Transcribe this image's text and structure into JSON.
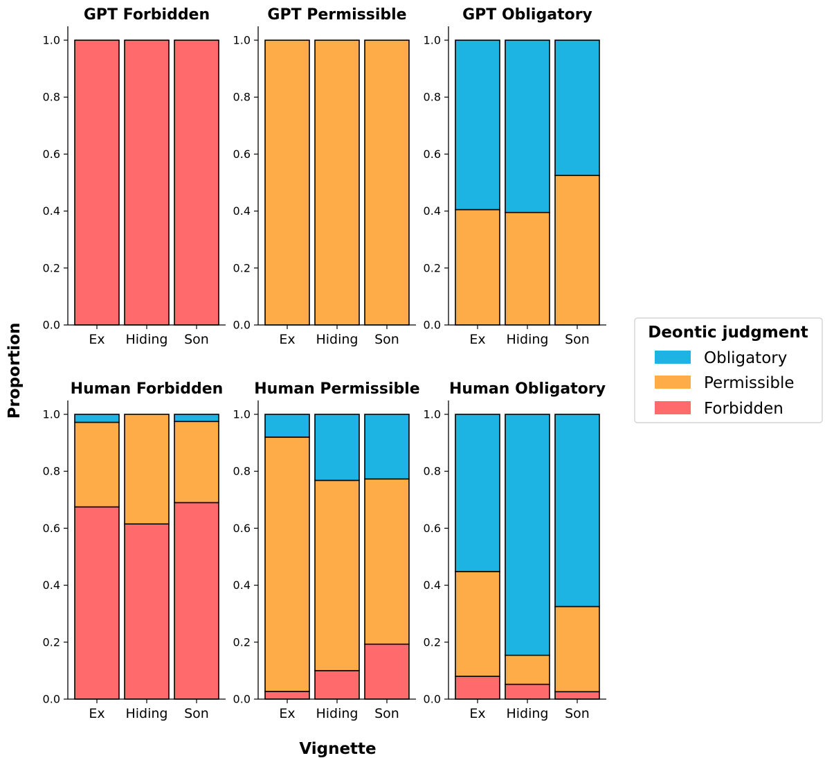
{
  "figure": {
    "ylabel": "Proportion",
    "xlabel": "Vignette"
  },
  "legend": {
    "title": "Deontic judgment",
    "entries": [
      "Obligatory",
      "Permissible",
      "Forbidden"
    ]
  },
  "colors": {
    "Obligatory": "#1db4e4",
    "Permissible": "#fdac47",
    "Forbidden": "#ff6b6d",
    "edge": "#000000"
  },
  "chart_data": [
    {
      "type": "bar",
      "stacked": true,
      "title": "GPT Forbidden",
      "categories": [
        "Ex",
        "Hiding",
        "Son"
      ],
      "ylim": [
        0,
        1
      ],
      "yticks": [
        "0.0",
        "0.2",
        "0.4",
        "0.6",
        "0.8",
        "1.0"
      ],
      "series": [
        {
          "name": "Forbidden",
          "values": [
            1.0,
            1.0,
            1.0
          ]
        },
        {
          "name": "Permissible",
          "values": [
            0,
            0,
            0
          ]
        },
        {
          "name": "Obligatory",
          "values": [
            0,
            0,
            0
          ]
        }
      ]
    },
    {
      "type": "bar",
      "stacked": true,
      "title": "GPT Permissible",
      "categories": [
        "Ex",
        "Hiding",
        "Son"
      ],
      "ylim": [
        0,
        1
      ],
      "yticks": [
        "0.0",
        "0.2",
        "0.4",
        "0.6",
        "0.8",
        "1.0"
      ],
      "series": [
        {
          "name": "Forbidden",
          "values": [
            0,
            0,
            0
          ]
        },
        {
          "name": "Permissible",
          "values": [
            1.0,
            1.0,
            1.0
          ]
        },
        {
          "name": "Obligatory",
          "values": [
            0,
            0,
            0
          ]
        }
      ]
    },
    {
      "type": "bar",
      "stacked": true,
      "title": "GPT Obligatory",
      "categories": [
        "Ex",
        "Hiding",
        "Son"
      ],
      "ylim": [
        0,
        1
      ],
      "yticks": [
        "0.0",
        "0.2",
        "0.4",
        "0.6",
        "0.8",
        "1.0"
      ],
      "series": [
        {
          "name": "Forbidden",
          "values": [
            0,
            0,
            0
          ]
        },
        {
          "name": "Permissible",
          "values": [
            0.405,
            0.395,
            0.525
          ]
        },
        {
          "name": "Obligatory",
          "values": [
            0.595,
            0.605,
            0.475
          ]
        }
      ]
    },
    {
      "type": "bar",
      "stacked": true,
      "title": "Human Forbidden",
      "categories": [
        "Ex",
        "Hiding",
        "Son"
      ],
      "ylim": [
        0,
        1
      ],
      "yticks": [
        "0.0",
        "0.2",
        "0.4",
        "0.6",
        "0.8",
        "1.0"
      ],
      "series": [
        {
          "name": "Forbidden",
          "values": [
            0.675,
            0.615,
            0.69
          ]
        },
        {
          "name": "Permissible",
          "values": [
            0.297,
            0.385,
            0.285
          ]
        },
        {
          "name": "Obligatory",
          "values": [
            0.028,
            0.0,
            0.025
          ]
        }
      ]
    },
    {
      "type": "bar",
      "stacked": true,
      "title": "Human Permissible",
      "categories": [
        "Ex",
        "Hiding",
        "Son"
      ],
      "ylim": [
        0,
        1
      ],
      "yticks": [
        "0.0",
        "0.2",
        "0.4",
        "0.6",
        "0.8",
        "1.0"
      ],
      "series": [
        {
          "name": "Forbidden",
          "values": [
            0.027,
            0.1,
            0.193
          ]
        },
        {
          "name": "Permissible",
          "values": [
            0.893,
            0.668,
            0.58
          ]
        },
        {
          "name": "Obligatory",
          "values": [
            0.08,
            0.232,
            0.227
          ]
        }
      ]
    },
    {
      "type": "bar",
      "stacked": true,
      "title": "Human Obligatory",
      "categories": [
        "Ex",
        "Hiding",
        "Son"
      ],
      "ylim": [
        0,
        1
      ],
      "yticks": [
        "0.0",
        "0.2",
        "0.4",
        "0.6",
        "0.8",
        "1.0"
      ],
      "series": [
        {
          "name": "Forbidden",
          "values": [
            0.08,
            0.052,
            0.026
          ]
        },
        {
          "name": "Permissible",
          "values": [
            0.368,
            0.102,
            0.299
          ]
        },
        {
          "name": "Obligatory",
          "values": [
            0.552,
            0.846,
            0.675
          ]
        }
      ]
    }
  ]
}
